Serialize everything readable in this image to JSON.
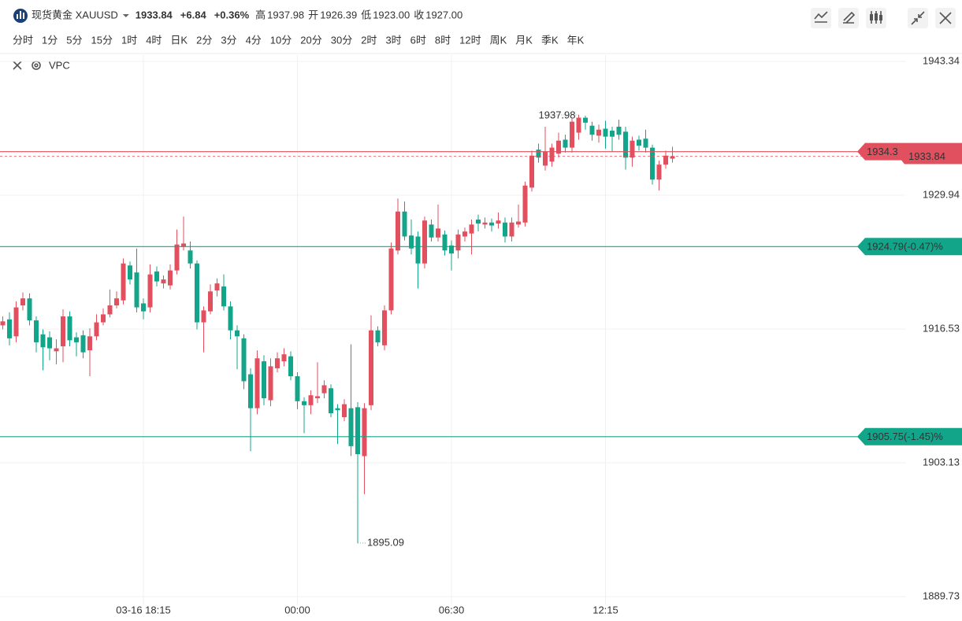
{
  "header": {
    "symbol": "现货黄金 XAUUSD",
    "price": "1933.84",
    "change": "+6.84",
    "change_pct": "+0.36%",
    "stats": [
      {
        "label": "高",
        "value": "1937.98"
      },
      {
        "label": "开",
        "value": "1926.39"
      },
      {
        "label": "低",
        "value": "1923.00"
      },
      {
        "label": "收",
        "value": "1927.00"
      }
    ]
  },
  "periods": [
    "分时",
    "1分",
    "5分",
    "15分",
    "1时",
    "4时",
    "日K",
    "2分",
    "3分",
    "4分",
    "10分",
    "20分",
    "30分",
    "2时",
    "3时",
    "6时",
    "8时",
    "12时",
    "周K",
    "月K",
    "季K",
    "年K"
  ],
  "active_period_index": 3,
  "indicator": "VPC",
  "chart_data": {
    "type": "candlestick",
    "up_color": "#e0505e",
    "down_color": "#13a58a",
    "grid": true,
    "categories": [
      null,
      null,
      null,
      null,
      null,
      null,
      null,
      null,
      null,
      null,
      null,
      null,
      null,
      null,
      null,
      null,
      null,
      null,
      null,
      null,
      null,
      "03-16 18:15",
      null,
      null,
      null,
      null,
      null,
      null,
      null,
      null,
      null,
      null,
      null,
      null,
      null,
      null,
      null,
      null,
      null,
      null,
      null,
      null,
      null,
      null,
      "00:00",
      null,
      null,
      null,
      null,
      null,
      null,
      null,
      null,
      null,
      null,
      null,
      null,
      null,
      null,
      null,
      null,
      null,
      null,
      null,
      null,
      null,
      null,
      "06:30",
      null,
      null,
      null,
      null,
      null,
      null,
      null,
      null,
      null,
      null,
      null,
      null,
      null,
      null,
      null,
      null,
      null,
      null,
      null,
      null,
      null,
      null,
      "12:15",
      null,
      null,
      null,
      null,
      null,
      null,
      null,
      null,
      null,
      null
    ],
    "open": [
      1916.9,
      1917.5,
      1915.8,
      1918.9,
      1919.6,
      1917.4,
      1916.0,
      1915.7,
      1914.3,
      1914.8,
      1917.8,
      1915.7,
      1915.9,
      1914.4,
      1915.8,
      1917.2,
      1918.0,
      1918.9,
      1919.4,
      1922.9,
      1922.2,
      1919.1,
      1918.7,
      1922.3,
      1921.1,
      1920.9,
      1922.4,
      1924.8,
      1924.4,
      1923.1,
      1917.2,
      1918.3,
      1920.4,
      1920.8,
      1918.8,
      1916.4,
      1915.6,
      1912.0,
      1908.6,
      1913.3,
      1909.4,
      1912.6,
      1913.3,
      1913.8,
      1911.8,
      1909.3,
      1908.9,
      1909.6,
      1910.1,
      1910.6,
      1908.6,
      1907.7,
      1908.6,
      1908.7,
      1903.8,
      1908.9,
      1916.4,
      1914.9,
      1918.4,
      1924.4,
      1928.3,
      1925.9,
      1925.8,
      1923.1,
      1927.0,
      1925.7,
      1926.0,
      1924.9,
      1924.4,
      1925.8,
      1926.1,
      1927.5,
      1927.0,
      1927.2,
      1927.1,
      1927.2,
      1925.8,
      1927.0,
      1927.2,
      1930.7,
      1934.5,
      1932.9,
      1933.3,
      1934.1,
      1935.5,
      1934.7,
      1936.2,
      1937.7,
      1936.9,
      1935.9,
      1936.6,
      1936.4,
      1936.8,
      1936.3,
      1933.7,
      1935.5,
      1935.6,
      1934.7,
      1931.5,
      1933.0,
      1933.6
    ],
    "high": [
      1917.8,
      1918.2,
      1919.3,
      1920.2,
      1920.1,
      1917.8,
      1916.5,
      1916.3,
      1915.5,
      1918.5,
      1918.3,
      1916.2,
      1916.4,
      1916.6,
      1918.0,
      1918.6,
      1920.5,
      1920.3,
      1923.6,
      1923.3,
      1924.6,
      1919.6,
      1923.0,
      1922.8,
      1921.9,
      1923.0,
      1926.5,
      1927.8,
      1925.3,
      1923.4,
      1918.8,
      1921.0,
      1921.6,
      1922.0,
      1919.3,
      1916.9,
      1916.0,
      1912.6,
      1914.4,
      1913.9,
      1913.6,
      1914.2,
      1914.6,
      1914.3,
      1912.2,
      1909.7,
      1910.4,
      1913.2,
      1911.4,
      1911.0,
      1909.0,
      1909.5,
      1915.0,
      1909.2,
      1909.1,
      1917.9,
      1916.8,
      1918.9,
      1925.2,
      1929.6,
      1929.3,
      1927.5,
      1926.3,
      1927.8,
      1927.5,
      1929.0,
      1926.4,
      1925.4,
      1926.5,
      1926.7,
      1927.5,
      1928.0,
      1927.7,
      1927.6,
      1928.2,
      1927.7,
      1927.7,
      1929.0,
      1931.3,
      1934.4,
      1935.1,
      1936.8,
      1935.1,
      1936.2,
      1936.0,
      1937.6,
      1937.98,
      1937.9,
      1937.3,
      1937.0,
      1937.4,
      1936.8,
      1937.5,
      1936.8,
      1935.8,
      1935.9,
      1936.5,
      1935.0,
      1933.4,
      1934.4,
      1934.8
    ],
    "low": [
      1916.5,
      1914.9,
      1915.2,
      1918.4,
      1916.9,
      1914.2,
      1912.4,
      1913.4,
      1913.0,
      1913.2,
      1914.8,
      1913.8,
      1913.6,
      1911.8,
      1915.4,
      1916.9,
      1917.7,
      1918.6,
      1919.0,
      1921.0,
      1918.2,
      1917.5,
      1918.2,
      1920.8,
      1920.6,
      1920.5,
      1922.0,
      1924.4,
      1922.6,
      1916.5,
      1914.2,
      1918.0,
      1919.8,
      1918.4,
      1915.5,
      1912.5,
      1910.5,
      1904.3,
      1908.0,
      1908.9,
      1908.8,
      1912.2,
      1912.8,
      1911.4,
      1908.5,
      1906.1,
      1908.0,
      1909.1,
      1909.6,
      1907.7,
      1905.0,
      1907.3,
      1903.8,
      1895.09,
      1900.0,
      1908.4,
      1914.8,
      1914.4,
      1918.0,
      1924.0,
      1925.4,
      1924.0,
      1920.6,
      1922.6,
      1925.3,
      1925.3,
      1923.9,
      1922.4,
      1923.6,
      1925.3,
      1924.0,
      1926.3,
      1926.6,
      1926.3,
      1926.6,
      1925.2,
      1925.3,
      1926.7,
      1926.8,
      1930.3,
      1933.2,
      1932.4,
      1932.8,
      1933.7,
      1934.2,
      1934.2,
      1935.5,
      1936.5,
      1935.4,
      1935.2,
      1934.6,
      1934.3,
      1935.5,
      1932.5,
      1932.8,
      1934.4,
      1934.2,
      1931.0,
      1930.4,
      1932.6,
      1933.2
    ],
    "close": [
      1917.3,
      1915.6,
      1918.7,
      1919.6,
      1917.4,
      1915.2,
      1914.7,
      1914.6,
      1914.6,
      1917.8,
      1915.4,
      1915.2,
      1914.2,
      1915.8,
      1917.2,
      1918.0,
      1918.9,
      1919.6,
      1923.1,
      1921.5,
      1918.7,
      1918.3,
      1922.0,
      1921.3,
      1921.5,
      1922.4,
      1925.0,
      1925.1,
      1923.1,
      1917.2,
      1918.4,
      1920.3,
      1921.1,
      1918.8,
      1916.4,
      1915.8,
      1911.3,
      1908.6,
      1913.6,
      1909.6,
      1912.8,
      1913.6,
      1914.0,
      1911.8,
      1909.3,
      1908.9,
      1909.9,
      1909.8,
      1910.9,
      1908.1,
      1908.4,
      1909.0,
      1904.8,
      1904.0,
      1908.6,
      1916.4,
      1915.2,
      1918.4,
      1924.6,
      1928.3,
      1925.8,
      1924.6,
      1923.1,
      1927.4,
      1925.7,
      1926.6,
      1924.4,
      1924.1,
      1926.0,
      1926.3,
      1927.0,
      1927.1,
      1927.2,
      1926.9,
      1927.4,
      1925.8,
      1927.2,
      1927.3,
      1930.9,
      1933.9,
      1933.7,
      1934.3,
      1934.7,
      1935.4,
      1934.7,
      1937.3,
      1937.7,
      1937.2,
      1936.0,
      1936.5,
      1935.8,
      1935.8,
      1936.0,
      1933.7,
      1935.4,
      1934.9,
      1934.7,
      1931.5,
      1933.0,
      1933.9,
      1933.84
    ],
    "ylim": [
      1889.73,
      1943.34
    ],
    "yticks": [
      1943.34,
      1929.94,
      1916.53,
      1903.13,
      1889.73
    ],
    "high_label": "1937.98",
    "low_label": "1895.09",
    "last_price": 1933.84,
    "price_lines": [
      {
        "value": 1934.3,
        "color": "#e0505e"
      },
      {
        "value": 1924.79,
        "label": "1924.79(-0.47)%",
        "color": "#13a58a"
      },
      {
        "value": 1905.75,
        "label": "1905.75(-1.45)%",
        "color": "#13a58a"
      }
    ]
  }
}
